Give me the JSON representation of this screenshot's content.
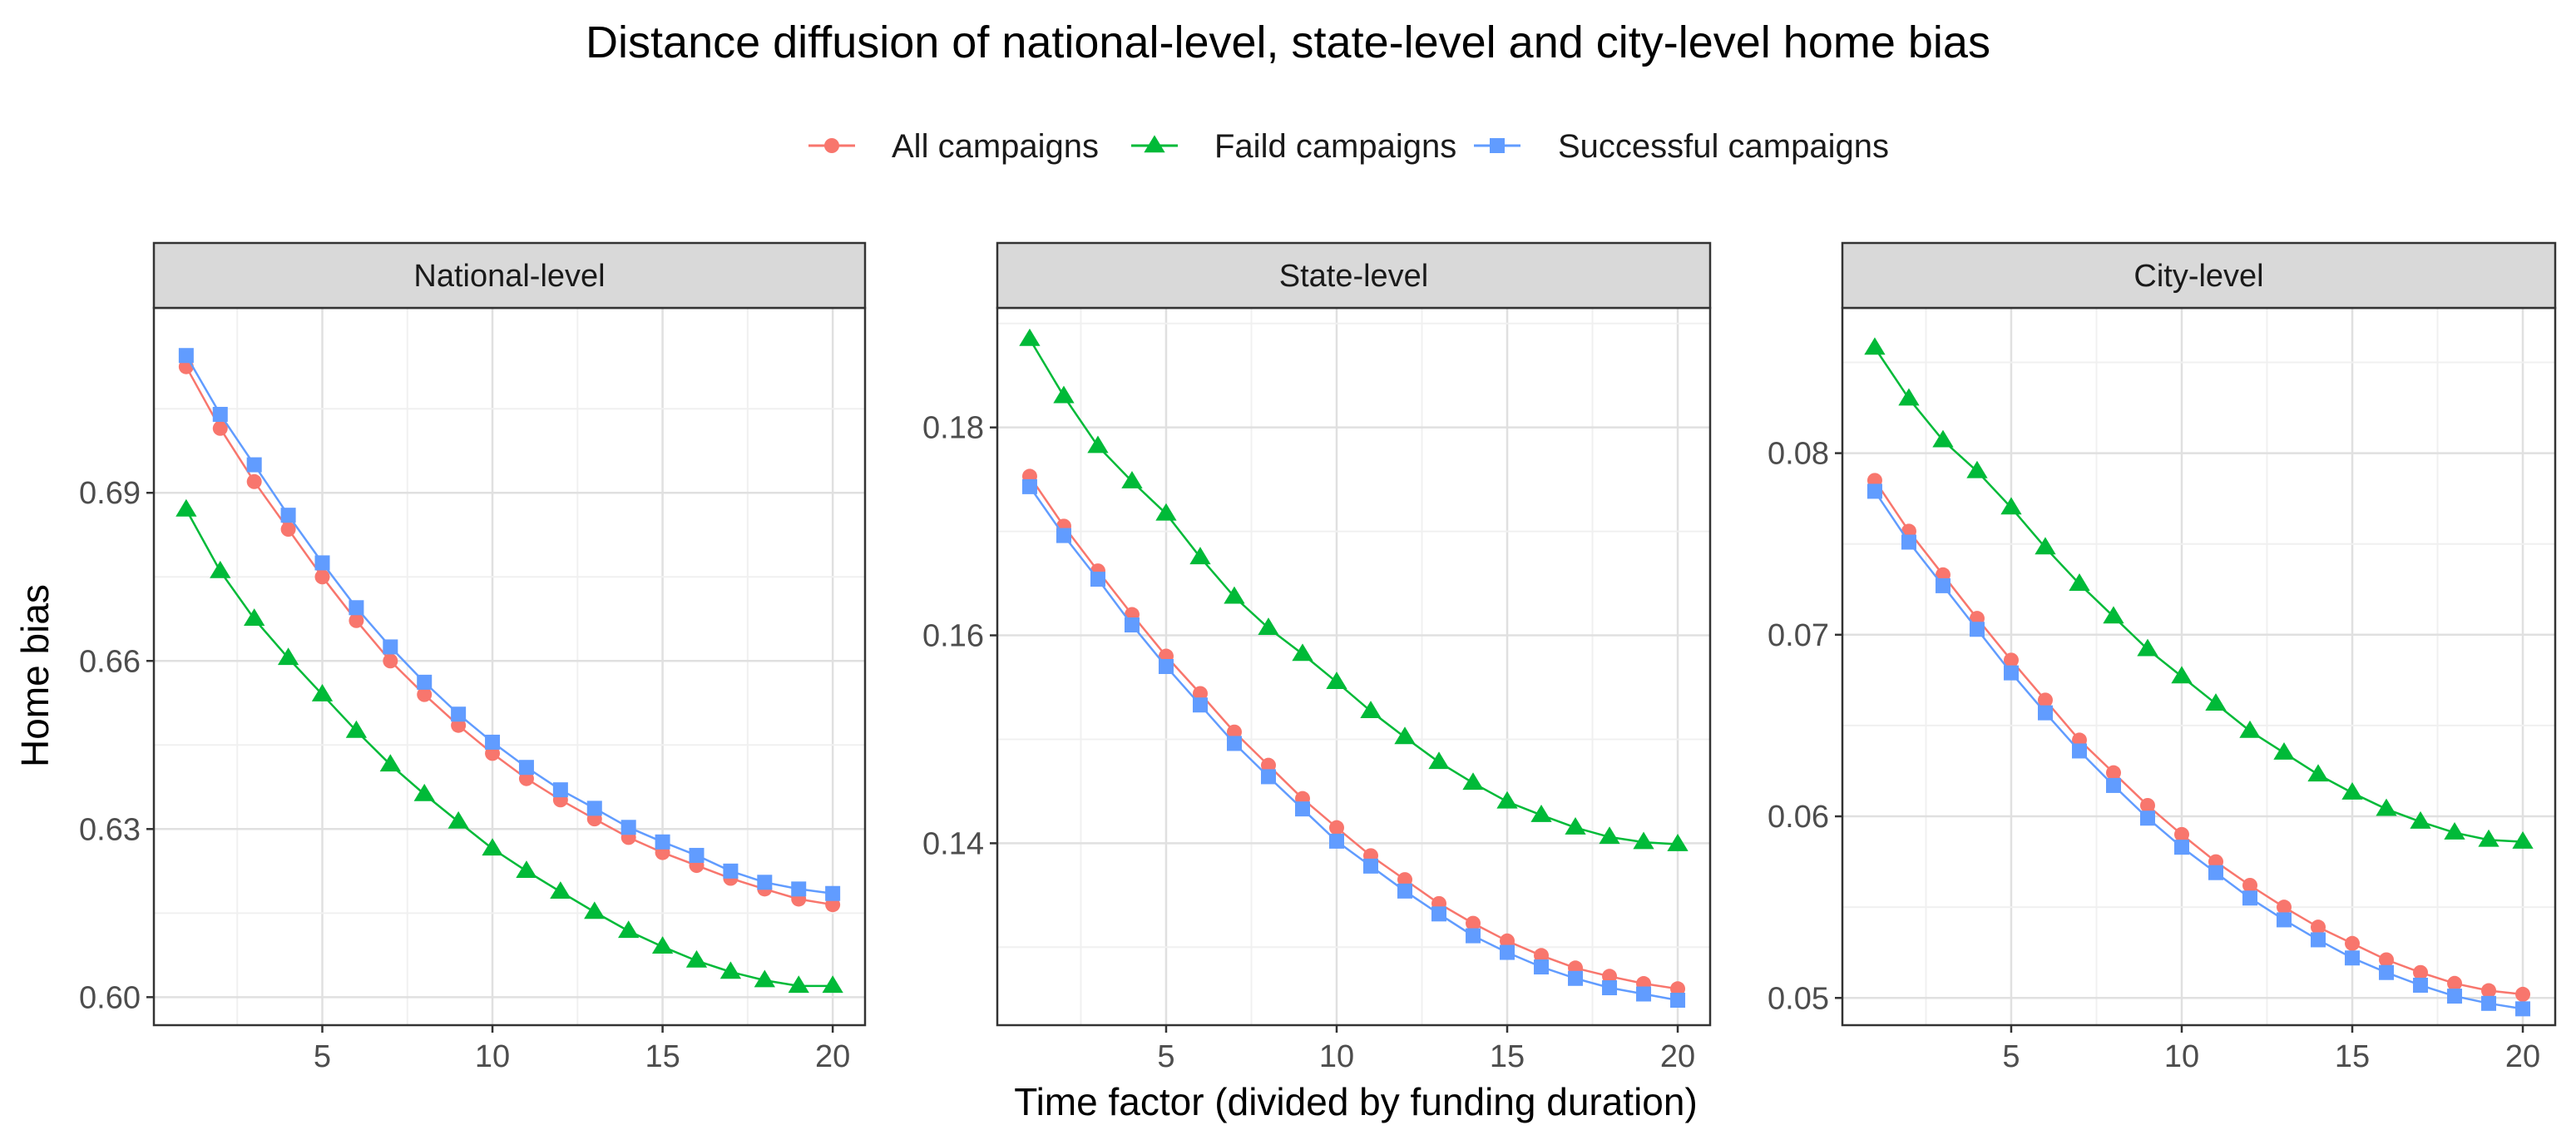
{
  "chart_data": {
    "type": "line",
    "title": "Distance diffusion of national-level, state-level and city-level home bias",
    "xlabel": "Time factor (divided by funding duration)",
    "ylabel": "Home bias",
    "x": [
      1,
      2,
      3,
      4,
      5,
      6,
      7,
      8,
      9,
      10,
      11,
      12,
      13,
      14,
      15,
      16,
      17,
      18,
      19,
      20
    ],
    "x_ticks": [
      5,
      10,
      15,
      20
    ],
    "legend": {
      "position": "top",
      "entries": [
        {
          "name": "All campaigns",
          "color": "#F8766D",
          "marker": "circle"
        },
        {
          "name": "Faild campaigns",
          "color": "#00BA38",
          "marker": "triangle"
        },
        {
          "name": "Successful campaigns",
          "color": "#619CFF",
          "marker": "square"
        }
      ]
    },
    "panels": [
      {
        "strip": "National-level",
        "xlim": [
          0.05,
          20.95
        ],
        "ylim": [
          0.595,
          0.723
        ],
        "y_ticks": [
          0.6,
          0.63,
          0.66,
          0.69
        ],
        "y_tick_labels": [
          "0.60",
          "0.63",
          "0.66",
          "0.69"
        ],
        "series": [
          {
            "name": "All campaigns",
            "values": [
              0.7125,
              0.7015,
              0.692,
              0.6835,
              0.675,
              0.6672,
              0.66,
              0.654,
              0.6485,
              0.6435,
              0.639,
              0.6352,
              0.6318,
              0.6285,
              0.6258,
              0.6235,
              0.6212,
              0.6193,
              0.6175,
              0.6165
            ]
          },
          {
            "name": "Faild campaigns",
            "values": [
              0.687,
              0.676,
              0.6675,
              0.6605,
              0.654,
              0.6475,
              0.6415,
              0.6362,
              0.6313,
              0.6265,
              0.6225,
              0.6188,
              0.6152,
              0.6118,
              0.609,
              0.6065,
              0.6045,
              0.603,
              0.602,
              0.602
            ]
          },
          {
            "name": "Successful campaigns",
            "values": [
              0.7145,
              0.704,
              0.695,
              0.686,
              0.6775,
              0.6695,
              0.6625,
              0.6562,
              0.6505,
              0.6455,
              0.641,
              0.637,
              0.6337,
              0.6303,
              0.6277,
              0.6253,
              0.6225,
              0.6205,
              0.6193,
              0.6185
            ]
          }
        ]
      },
      {
        "strip": "State-level",
        "xlim": [
          0.05,
          20.95
        ],
        "ylim": [
          0.1225,
          0.1915
        ],
        "y_ticks": [
          0.14,
          0.16,
          0.18
        ],
        "y_tick_labels": [
          "0.14",
          "0.16",
          "0.18"
        ],
        "series": [
          {
            "name": "All campaigns",
            "values": [
              0.1753,
              0.1705,
              0.1662,
              0.162,
              0.158,
              0.1544,
              0.1507,
              0.1475,
              0.1443,
              0.1415,
              0.1388,
              0.1365,
              0.1342,
              0.1323,
              0.1306,
              0.1292,
              0.128,
              0.1272,
              0.1265,
              0.126
            ]
          },
          {
            "name": "Faild campaigns",
            "values": [
              0.1885,
              0.183,
              0.1782,
              0.1748,
              0.1717,
              0.1675,
              0.1637,
              0.1607,
              0.1582,
              0.1555,
              0.1527,
              0.1502,
              0.1478,
              0.1458,
              0.144,
              0.1427,
              0.1415,
              0.1406,
              0.1401,
              0.1399
            ]
          },
          {
            "name": "Successful campaigns",
            "values": [
              0.1743,
              0.1696,
              0.1654,
              0.161,
              0.157,
              0.1533,
              0.1496,
              0.1464,
              0.1433,
              0.1402,
              0.1378,
              0.1354,
              0.1332,
              0.1311,
              0.1295,
              0.1281,
              0.127,
              0.1261,
              0.1255,
              0.1249
            ]
          }
        ]
      },
      {
        "strip": "City-level",
        "xlim": [
          0.05,
          20.95
        ],
        "ylim": [
          0.0485,
          0.088
        ],
        "y_ticks": [
          0.05,
          0.06,
          0.07,
          0.08
        ],
        "y_tick_labels": [
          "0.05",
          "0.06",
          "0.07",
          "0.08"
        ],
        "series": [
          {
            "name": "All campaigns",
            "values": [
              0.0785,
              0.0757,
              0.0733,
              0.0709,
              0.0686,
              0.0664,
              0.0642,
              0.0624,
              0.0606,
              0.059,
              0.0575,
              0.0562,
              0.055,
              0.0539,
              0.053,
              0.0521,
              0.0514,
              0.0508,
              0.0504,
              0.0502
            ]
          },
          {
            "name": "Faild campaigns",
            "values": [
              0.0858,
              0.083,
              0.0807,
              0.079,
              0.077,
              0.0748,
              0.0728,
              0.071,
              0.0692,
              0.0677,
              0.0662,
              0.0647,
              0.0635,
              0.0623,
              0.0613,
              0.0604,
              0.0597,
              0.0591,
              0.0587,
              0.0586
            ]
          },
          {
            "name": "Successful campaigns",
            "values": [
              0.0779,
              0.0751,
              0.0727,
              0.0703,
              0.0679,
              0.0657,
              0.0636,
              0.0617,
              0.0599,
              0.0583,
              0.0569,
              0.0555,
              0.0543,
              0.0532,
              0.0522,
              0.0514,
              0.0507,
              0.0501,
              0.0497,
              0.0494
            ]
          }
        ]
      }
    ]
  }
}
